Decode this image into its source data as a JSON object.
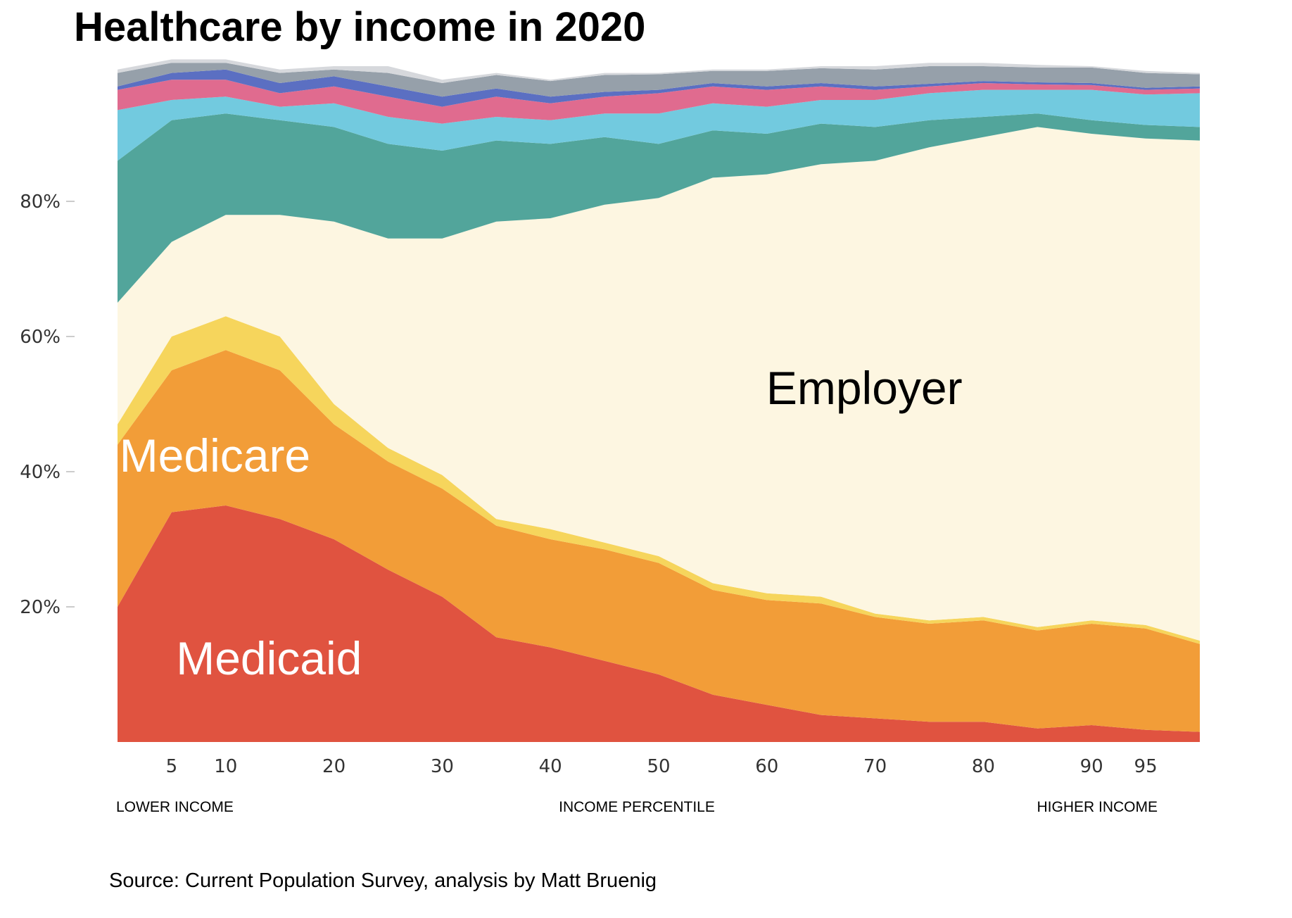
{
  "chart_data": {
    "type": "area",
    "stacked": true,
    "title": "Healthcare by income in 2020",
    "xlabel": "INCOME PERCENTILE",
    "x_left_note": "LOWER INCOME",
    "x_right_note": "HIGHER INCOME",
    "source": "Source: Current Population Survey, analysis by Matt Bruenig",
    "xlim": [
      0,
      100
    ],
    "ylim": [
      0,
      100
    ],
    "x_ticks": [
      5,
      10,
      20,
      30,
      40,
      50,
      60,
      70,
      80,
      90,
      95
    ],
    "y_ticks": [
      20,
      40,
      60,
      80
    ],
    "y_tick_labels": [
      "20%",
      "40%",
      "60%",
      "80%"
    ],
    "grid": false,
    "x": [
      0,
      5,
      10,
      15,
      20,
      25,
      30,
      35,
      40,
      45,
      50,
      55,
      60,
      65,
      70,
      75,
      80,
      85,
      90,
      95,
      100
    ],
    "series": [
      {
        "name": "Medicaid",
        "label_shown": "Medicaid",
        "color": "#e05340",
        "values": [
          20,
          34,
          35,
          33,
          30,
          25.5,
          21.5,
          15.5,
          14,
          12,
          10,
          7,
          5.5,
          4,
          3.5,
          3,
          3,
          2,
          2.5,
          1.8,
          1.5
        ]
      },
      {
        "name": "Medicare",
        "label_shown": "Medicare",
        "color": "#f29d38",
        "values": [
          24,
          21,
          23,
          22,
          17,
          16,
          16,
          16.5,
          16,
          16.5,
          16.5,
          15.5,
          15.5,
          16.5,
          15,
          14.5,
          15,
          14.5,
          15,
          15,
          13
        ]
      },
      {
        "name": "",
        "color": "#f6d55c",
        "values": [
          3,
          5,
          5,
          5,
          3,
          2,
          2,
          1,
          1.5,
          1,
          1,
          1,
          1,
          1,
          0.5,
          0.5,
          0.5,
          0.5,
          0.5,
          0.5,
          0.5
        ]
      },
      {
        "name": "Employer",
        "label_shown": "Employer",
        "color": "#fdf6e1",
        "values": [
          18,
          14,
          15,
          18,
          27,
          31,
          35,
          44,
          46,
          50,
          53,
          60,
          62,
          64,
          67,
          70,
          71,
          74,
          72,
          72,
          74
        ]
      },
      {
        "name": "",
        "color": "#52a59b",
        "values": [
          21,
          18,
          15,
          14,
          14,
          14,
          13,
          12,
          11,
          10,
          8,
          7,
          6,
          6,
          5,
          4,
          3,
          2,
          2,
          2,
          2
        ]
      },
      {
        "name": "",
        "color": "#72cadf",
        "values": [
          7.5,
          3,
          2.5,
          2,
          3.5,
          4,
          4,
          3.5,
          3.5,
          3.5,
          4.5,
          4,
          4,
          3.5,
          4,
          4,
          4,
          3.5,
          4.5,
          4.5,
          5
        ]
      },
      {
        "name": "",
        "color": "#e06b8f",
        "values": [
          3,
          3,
          2.5,
          2,
          2.5,
          3,
          2.5,
          3,
          2.5,
          2.5,
          3,
          2.5,
          2.5,
          2,
          1.5,
          1,
          1,
          0.8,
          0.7,
          0.7,
          0.7
        ]
      },
      {
        "name": "",
        "color": "#5b6fc2",
        "values": [
          0.5,
          1,
          1.5,
          1.5,
          1.5,
          1.5,
          1.5,
          1.2,
          1,
          0.7,
          0.5,
          0.5,
          0.5,
          0.5,
          0.5,
          0.4,
          0.3,
          0.3,
          0.3,
          0.3,
          0.3
        ]
      },
      {
        "name": "",
        "color": "#96a0aa",
        "values": [
          2,
          1.5,
          1,
          1.5,
          1,
          2,
          2,
          2,
          2.3,
          2.5,
          2.3,
          1.8,
          2.3,
          2.2,
          2.5,
          2.6,
          2.2,
          2.2,
          2.3,
          2.2,
          1.8
        ]
      },
      {
        "name": "",
        "color": "#d6d8dc",
        "values": [
          0.5,
          0.5,
          0.5,
          0.5,
          0.5,
          1,
          0.5,
          0.3,
          0.2,
          0.3,
          0.2,
          0.2,
          0.2,
          0.3,
          0.5,
          0.5,
          0.5,
          0.4,
          0.2,
          0.3,
          0.2
        ]
      }
    ]
  }
}
